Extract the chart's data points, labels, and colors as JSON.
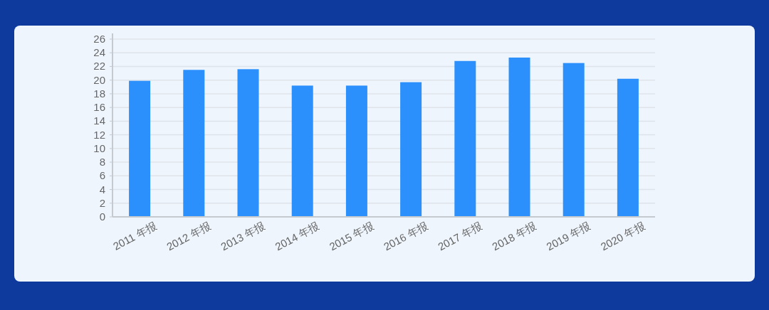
{
  "chart_data": {
    "type": "bar",
    "categories": [
      "2011 年报",
      "2012 年报",
      "2013 年报",
      "2014 年报",
      "2015 年报",
      "2016 年报",
      "2017 年报",
      "2018 年报",
      "2019 年报",
      "2020 年报"
    ],
    "values": [
      19.9,
      21.5,
      21.6,
      19.2,
      19.2,
      19.7,
      22.8,
      23.3,
      22.5,
      20.2
    ],
    "color": "#2b90fc",
    "ylim": [
      0,
      26
    ],
    "yticks": [
      0,
      2,
      4,
      6,
      8,
      10,
      12,
      14,
      16,
      18,
      20,
      22,
      24,
      26
    ],
    "grid": "y"
  }
}
